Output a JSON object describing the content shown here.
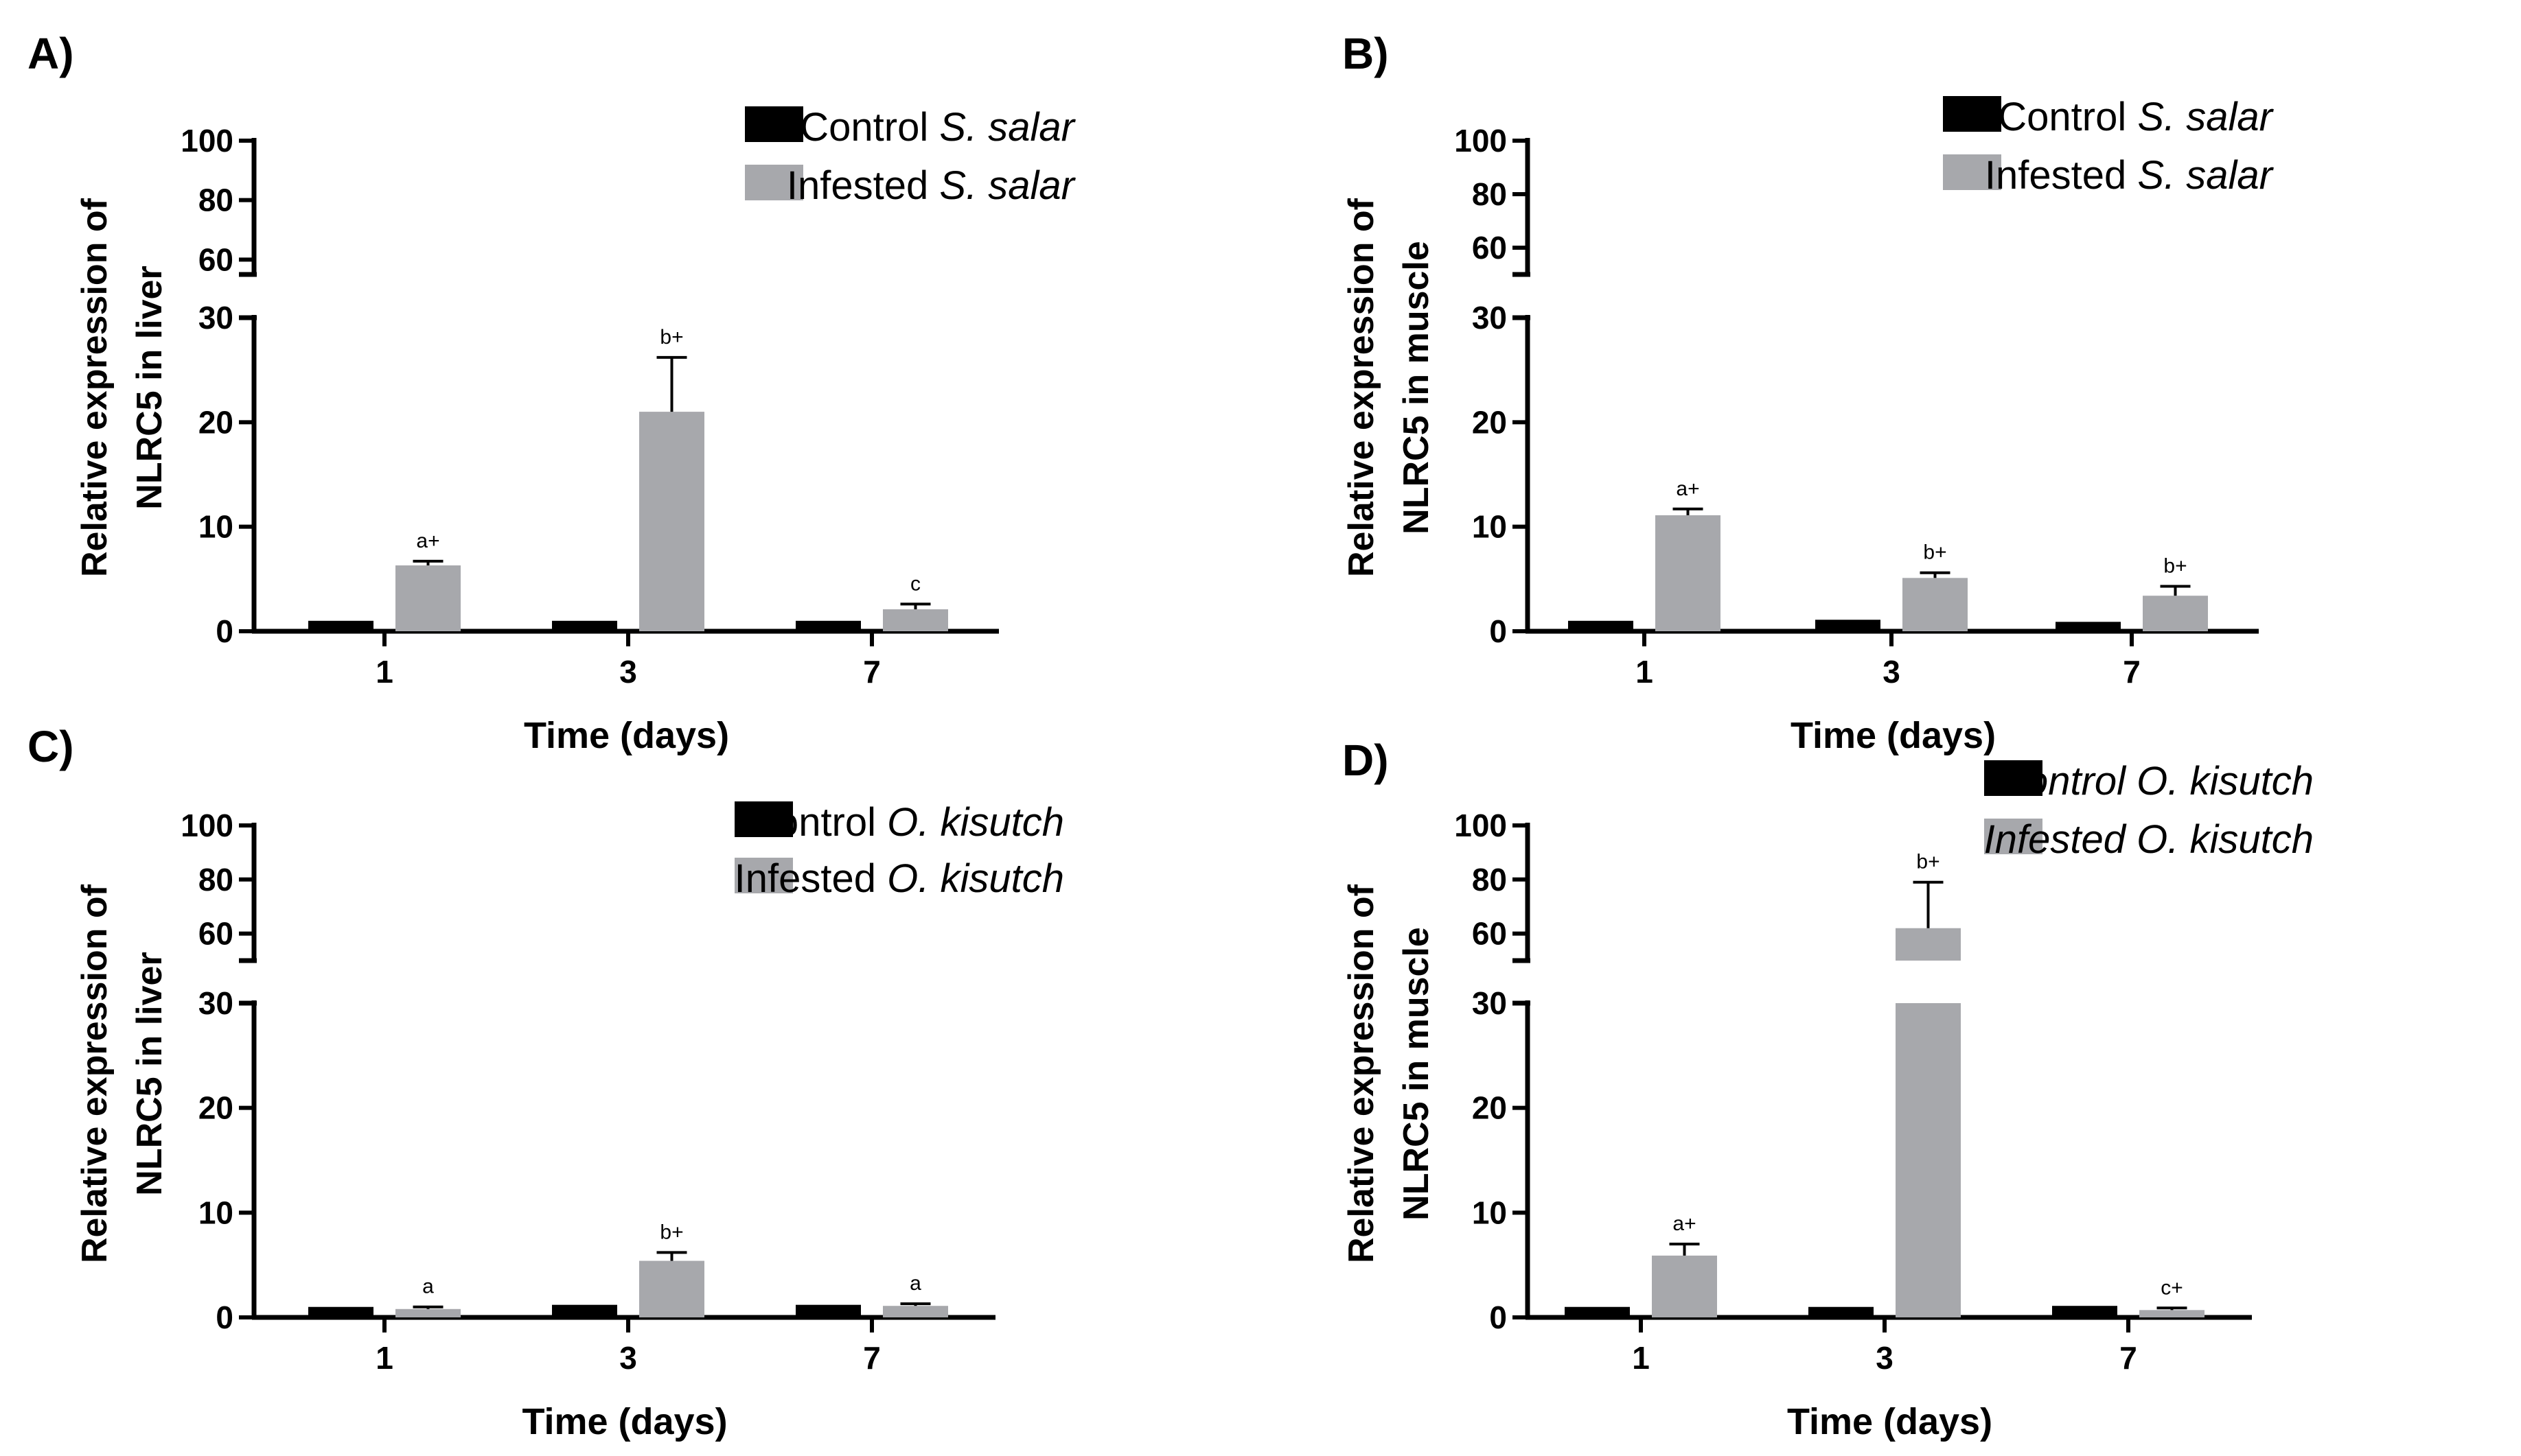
{
  "colors": {
    "control": "#000000",
    "infested": "#a7a8ac",
    "axis": "#000000"
  },
  "chart_data": [
    {
      "panel": "A)",
      "type": "bar",
      "xlabel": "Time (days)",
      "ylabel": [
        "Relative expression of",
        "NLRC5 in liver"
      ],
      "categories": [
        "1",
        "3",
        "7"
      ],
      "y_break": {
        "lower": [
          0,
          30
        ],
        "upper": [
          55,
          100
        ]
      },
      "yticks_lower": [
        0,
        10,
        20,
        30
      ],
      "yticks_upper": [
        60,
        80,
        100
      ],
      "legend_position": "top-right",
      "legend_italic": false,
      "series": [
        {
          "name": "Control S. salar",
          "prefix": "Control ",
          "species": "S. salar",
          "values": [
            1.0,
            1.0,
            1.0
          ],
          "errors": [
            0,
            0,
            0
          ]
        },
        {
          "name": "Infested S. salar",
          "prefix": "Infested ",
          "species": "S. salar",
          "values": [
            6.3,
            21.0,
            2.1
          ],
          "errors": [
            0.4,
            5.2,
            0.5
          ],
          "labels": [
            "a+",
            "b+",
            "c"
          ]
        }
      ]
    },
    {
      "panel": "B)",
      "type": "bar",
      "xlabel": "Time (days)",
      "ylabel": [
        "Relative expression of",
        "NLRC5 in muscle"
      ],
      "categories": [
        "1",
        "3",
        "7"
      ],
      "y_break": {
        "lower": [
          0,
          30
        ],
        "upper": [
          50,
          100
        ]
      },
      "yticks_lower": [
        0,
        10,
        20,
        30
      ],
      "yticks_upper": [
        60,
        80,
        100
      ],
      "legend_position": "top-right",
      "legend_italic": false,
      "series": [
        {
          "name": "Control S. salar",
          "prefix": "Control ",
          "species": "S. salar",
          "values": [
            1.0,
            1.1,
            0.9
          ],
          "errors": [
            0,
            0,
            0
          ]
        },
        {
          "name": "Infested S. salar",
          "prefix": "Infested ",
          "species": "S. salar",
          "values": [
            11.1,
            5.1,
            3.4
          ],
          "errors": [
            0.6,
            0.5,
            0.9
          ],
          "labels": [
            "a+",
            "b+",
            "b+"
          ]
        }
      ]
    },
    {
      "panel": "C)",
      "type": "bar",
      "xlabel": "Time (days)",
      "ylabel": [
        "Relative expression of",
        "NLRC5 in liver"
      ],
      "categories": [
        "1",
        "3",
        "7"
      ],
      "y_break": {
        "lower": [
          0,
          30
        ],
        "upper": [
          50,
          100
        ]
      },
      "yticks_lower": [
        0,
        10,
        20,
        30
      ],
      "yticks_upper": [
        60,
        80,
        100
      ],
      "legend_position": "top-right",
      "legend_italic": false,
      "series": [
        {
          "name": "Control O. kisutch",
          "prefix": "Control ",
          "species": "O. kisutch",
          "values": [
            1.0,
            1.2,
            1.2
          ],
          "errors": [
            0,
            0,
            0
          ]
        },
        {
          "name": "Infested O. kisutch",
          "prefix": "Infested ",
          "species": "O. kisutch",
          "values": [
            0.8,
            5.4,
            1.1
          ],
          "errors": [
            0.2,
            0.8,
            0.2
          ],
          "labels": [
            "a",
            "b+",
            "a"
          ]
        }
      ]
    },
    {
      "panel": "D)",
      "type": "bar",
      "xlabel": "Time (days)",
      "ylabel": [
        "Relative expression of",
        "NLRC5 in muscle"
      ],
      "categories": [
        "1",
        "3",
        "7"
      ],
      "y_break": {
        "lower": [
          0,
          30
        ],
        "upper": [
          50,
          100
        ]
      },
      "yticks_lower": [
        0,
        10,
        20,
        30
      ],
      "yticks_upper": [
        60,
        80,
        100
      ],
      "legend_position": "top-right",
      "legend_italic": true,
      "series": [
        {
          "name": "Control O. kisutch",
          "prefix": "Control ",
          "species": "O. kisutch",
          "values": [
            1.0,
            1.0,
            1.1
          ],
          "errors": [
            0,
            0,
            0
          ]
        },
        {
          "name": "Infested O. kisutch",
          "prefix": "Infested ",
          "species": "O. kisutch",
          "values": [
            5.9,
            62.0,
            0.7
          ],
          "errors": [
            1.1,
            17.0,
            0.2
          ],
          "labels": [
            "a+",
            "b+",
            "c+"
          ]
        }
      ]
    }
  ]
}
